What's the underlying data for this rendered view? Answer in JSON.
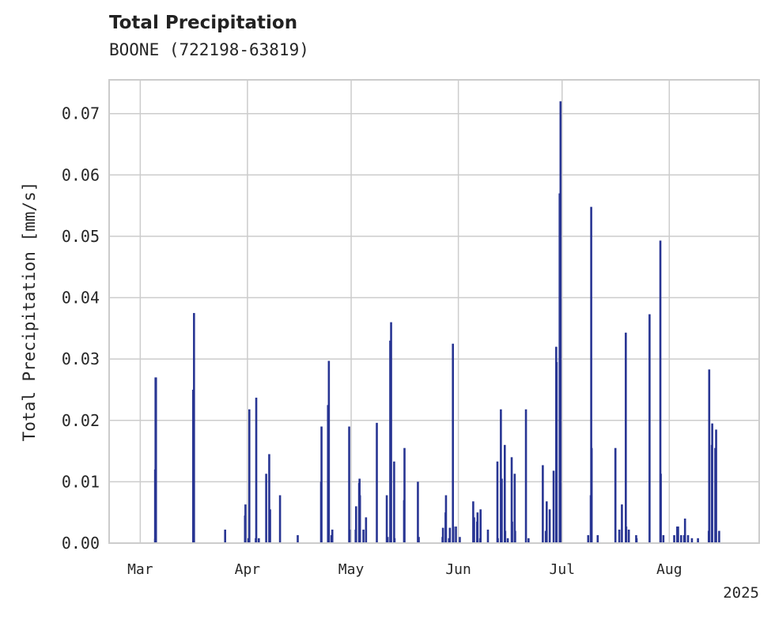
{
  "header": {
    "title": "Total Precipitation",
    "subtitle": "BOONE (722198-63819)"
  },
  "chart_data": {
    "type": "bar",
    "title": "Total Precipitation",
    "subtitle": "BOONE (722198-63819)",
    "xlabel": "",
    "ylabel": "Total Precipitation [mm/s]",
    "xlim": [
      "2025-02-20",
      "2025-08-27"
    ],
    "ylim": [
      0,
      0.0755
    ],
    "x_ticks": [
      {
        "date": "2025-03-01",
        "label": "Mar"
      },
      {
        "date": "2025-04-01",
        "label": "Apr"
      },
      {
        "date": "2025-05-01",
        "label": "May"
      },
      {
        "date": "2025-06-01",
        "label": "Jun"
      },
      {
        "date": "2025-07-01",
        "label": "Jul"
      },
      {
        "date": "2025-08-01",
        "label": "Aug"
      }
    ],
    "x_year_label": "2025",
    "y_ticks": [
      {
        "value": 0,
        "label": "0.00"
      },
      {
        "value": 0.01,
        "label": "0.01"
      },
      {
        "value": 0.02,
        "label": "0.02"
      },
      {
        "value": 0.03,
        "label": "0.03"
      },
      {
        "value": 0.04,
        "label": "0.04"
      },
      {
        "value": 0.05,
        "label": "0.05"
      },
      {
        "value": 0.06,
        "label": "0.06"
      },
      {
        "value": 0.07,
        "label": "0.07"
      }
    ],
    "grid": true,
    "bar_color": "#283593",
    "values": [
      [
        "2025-03-05",
        0.012
      ],
      [
        "2025-03-05",
        0.027
      ],
      [
        "2025-03-05",
        0.027
      ],
      [
        "2025-03-05",
        0.0007
      ],
      [
        "2025-03-16",
        0.0145
      ],
      [
        "2025-03-16",
        0.0375
      ],
      [
        "2025-03-16",
        0.025
      ],
      [
        "2025-03-16",
        0.0195
      ],
      [
        "2025-03-25",
        0.0022
      ],
      [
        "2025-03-31",
        0.0045
      ],
      [
        "2025-03-31",
        0.0063
      ],
      [
        "2025-04-01",
        0.0218
      ],
      [
        "2025-04-01",
        0.0008
      ],
      [
        "2025-04-03",
        0.0008
      ],
      [
        "2025-04-03",
        0.0237
      ],
      [
        "2025-04-04",
        0.0008
      ],
      [
        "2025-04-06",
        0.0113
      ],
      [
        "2025-04-07",
        0.0055
      ],
      [
        "2025-04-07",
        0.0145
      ],
      [
        "2025-04-10",
        0.0078
      ],
      [
        "2025-04-15",
        0.0013
      ],
      [
        "2025-04-22",
        0.01
      ],
      [
        "2025-04-22",
        0.019
      ],
      [
        "2025-04-24",
        0.0297
      ],
      [
        "2025-04-24",
        0.0225
      ],
      [
        "2025-04-24",
        0.0013
      ],
      [
        "2025-04-25",
        0.0022
      ],
      [
        "2025-04-25",
        0.0013
      ],
      [
        "2025-04-30",
        0.019
      ],
      [
        "2025-04-30",
        0.0022
      ],
      [
        "2025-05-02",
        0.0022
      ],
      [
        "2025-05-02",
        0.006
      ],
      [
        "2025-05-03",
        0.0078
      ],
      [
        "2025-05-03",
        0.0098
      ],
      [
        "2025-05-03",
        0.0105
      ],
      [
        "2025-05-04",
        0.0022
      ],
      [
        "2025-05-05",
        0.0042
      ],
      [
        "2025-05-08",
        0.0196
      ],
      [
        "2025-05-11",
        0.001
      ],
      [
        "2025-05-11",
        0.0078
      ],
      [
        "2025-05-12",
        0.0245
      ],
      [
        "2025-05-12",
        0.036
      ],
      [
        "2025-05-12",
        0.033
      ],
      [
        "2025-05-13",
        0.0133
      ],
      [
        "2025-05-13",
        0.0008
      ],
      [
        "2025-05-16",
        0.007
      ],
      [
        "2025-05-16",
        0.0155
      ],
      [
        "2025-05-20",
        0.001
      ],
      [
        "2025-05-20",
        0.01
      ],
      [
        "2025-05-27",
        0.001
      ],
      [
        "2025-05-27",
        0.0025
      ],
      [
        "2025-05-28",
        0.005
      ],
      [
        "2025-05-28",
        0.0078
      ],
      [
        "2025-05-29",
        0.0025
      ],
      [
        "2025-05-29",
        0.0008
      ],
      [
        "2025-05-30",
        0.0325
      ],
      [
        "2025-05-30",
        0.0027
      ],
      [
        "2025-05-31",
        0.0027
      ],
      [
        "2025-06-01",
        0.001
      ],
      [
        "2025-06-05",
        0.0042
      ],
      [
        "2025-06-05",
        0.0068
      ],
      [
        "2025-06-06",
        0.0035
      ],
      [
        "2025-06-06",
        0.005
      ],
      [
        "2025-06-07",
        0.0008
      ],
      [
        "2025-06-07",
        0.0055
      ],
      [
        "2025-06-09",
        0.0022
      ],
      [
        "2025-06-12",
        0.0133
      ],
      [
        "2025-06-12",
        0.0008
      ],
      [
        "2025-06-13",
        0.0105
      ],
      [
        "2025-06-13",
        0.0218
      ],
      [
        "2025-06-14",
        0.016
      ],
      [
        "2025-06-14",
        0.002
      ],
      [
        "2025-06-15",
        0.0008
      ],
      [
        "2025-06-16",
        0.014
      ],
      [
        "2025-06-16",
        0.0035
      ],
      [
        "2025-06-17",
        0.0113
      ],
      [
        "2025-06-17",
        0.002
      ],
      [
        "2025-06-20",
        0.0218
      ],
      [
        "2025-06-21",
        0.0008
      ],
      [
        "2025-06-25",
        0.0127
      ],
      [
        "2025-06-26",
        0.0068
      ],
      [
        "2025-06-26",
        0.002
      ],
      [
        "2025-06-27",
        0.0055
      ],
      [
        "2025-06-28",
        0.0118
      ],
      [
        "2025-06-29",
        0.032
      ],
      [
        "2025-06-29",
        0.0295
      ],
      [
        "2025-06-30",
        0.072
      ],
      [
        "2025-06-30",
        0.057
      ],
      [
        "2025-06-30",
        0.0063
      ],
      [
        "2025-07-08",
        0.0013
      ],
      [
        "2025-07-09",
        0.0078
      ],
      [
        "2025-07-09",
        0.0548
      ],
      [
        "2025-07-09",
        0.0155
      ],
      [
        "2025-07-11",
        0.0013
      ],
      [
        "2025-07-16",
        0.0155
      ],
      [
        "2025-07-17",
        0.0022
      ],
      [
        "2025-07-18",
        0.0063
      ],
      [
        "2025-07-19",
        0.0343
      ],
      [
        "2025-07-19",
        0.0027
      ],
      [
        "2025-07-20",
        0.0022
      ],
      [
        "2025-07-22",
        0.0013
      ],
      [
        "2025-07-22",
        0.0008
      ],
      [
        "2025-07-26",
        0.0373
      ],
      [
        "2025-07-29",
        0.0493
      ],
      [
        "2025-07-29",
        0.0113
      ],
      [
        "2025-07-30",
        0.0013
      ],
      [
        "2025-08-02",
        0.0013
      ],
      [
        "2025-08-03",
        0.0027
      ],
      [
        "2025-08-03",
        0.0027
      ],
      [
        "2025-08-04",
        0.0013
      ],
      [
        "2025-08-05",
        0.004
      ],
      [
        "2025-08-05",
        0.0013
      ],
      [
        "2025-08-06",
        0.0013
      ],
      [
        "2025-08-07",
        0.0008
      ],
      [
        "2025-08-09",
        0.0008
      ],
      [
        "2025-08-12",
        0.002
      ],
      [
        "2025-08-12",
        0.0283
      ],
      [
        "2025-08-13",
        0.016
      ],
      [
        "2025-08-13",
        0.0195
      ],
      [
        "2025-08-14",
        0.0185
      ],
      [
        "2025-08-14",
        0.0155
      ],
      [
        "2025-08-15",
        0.002
      ]
    ]
  }
}
